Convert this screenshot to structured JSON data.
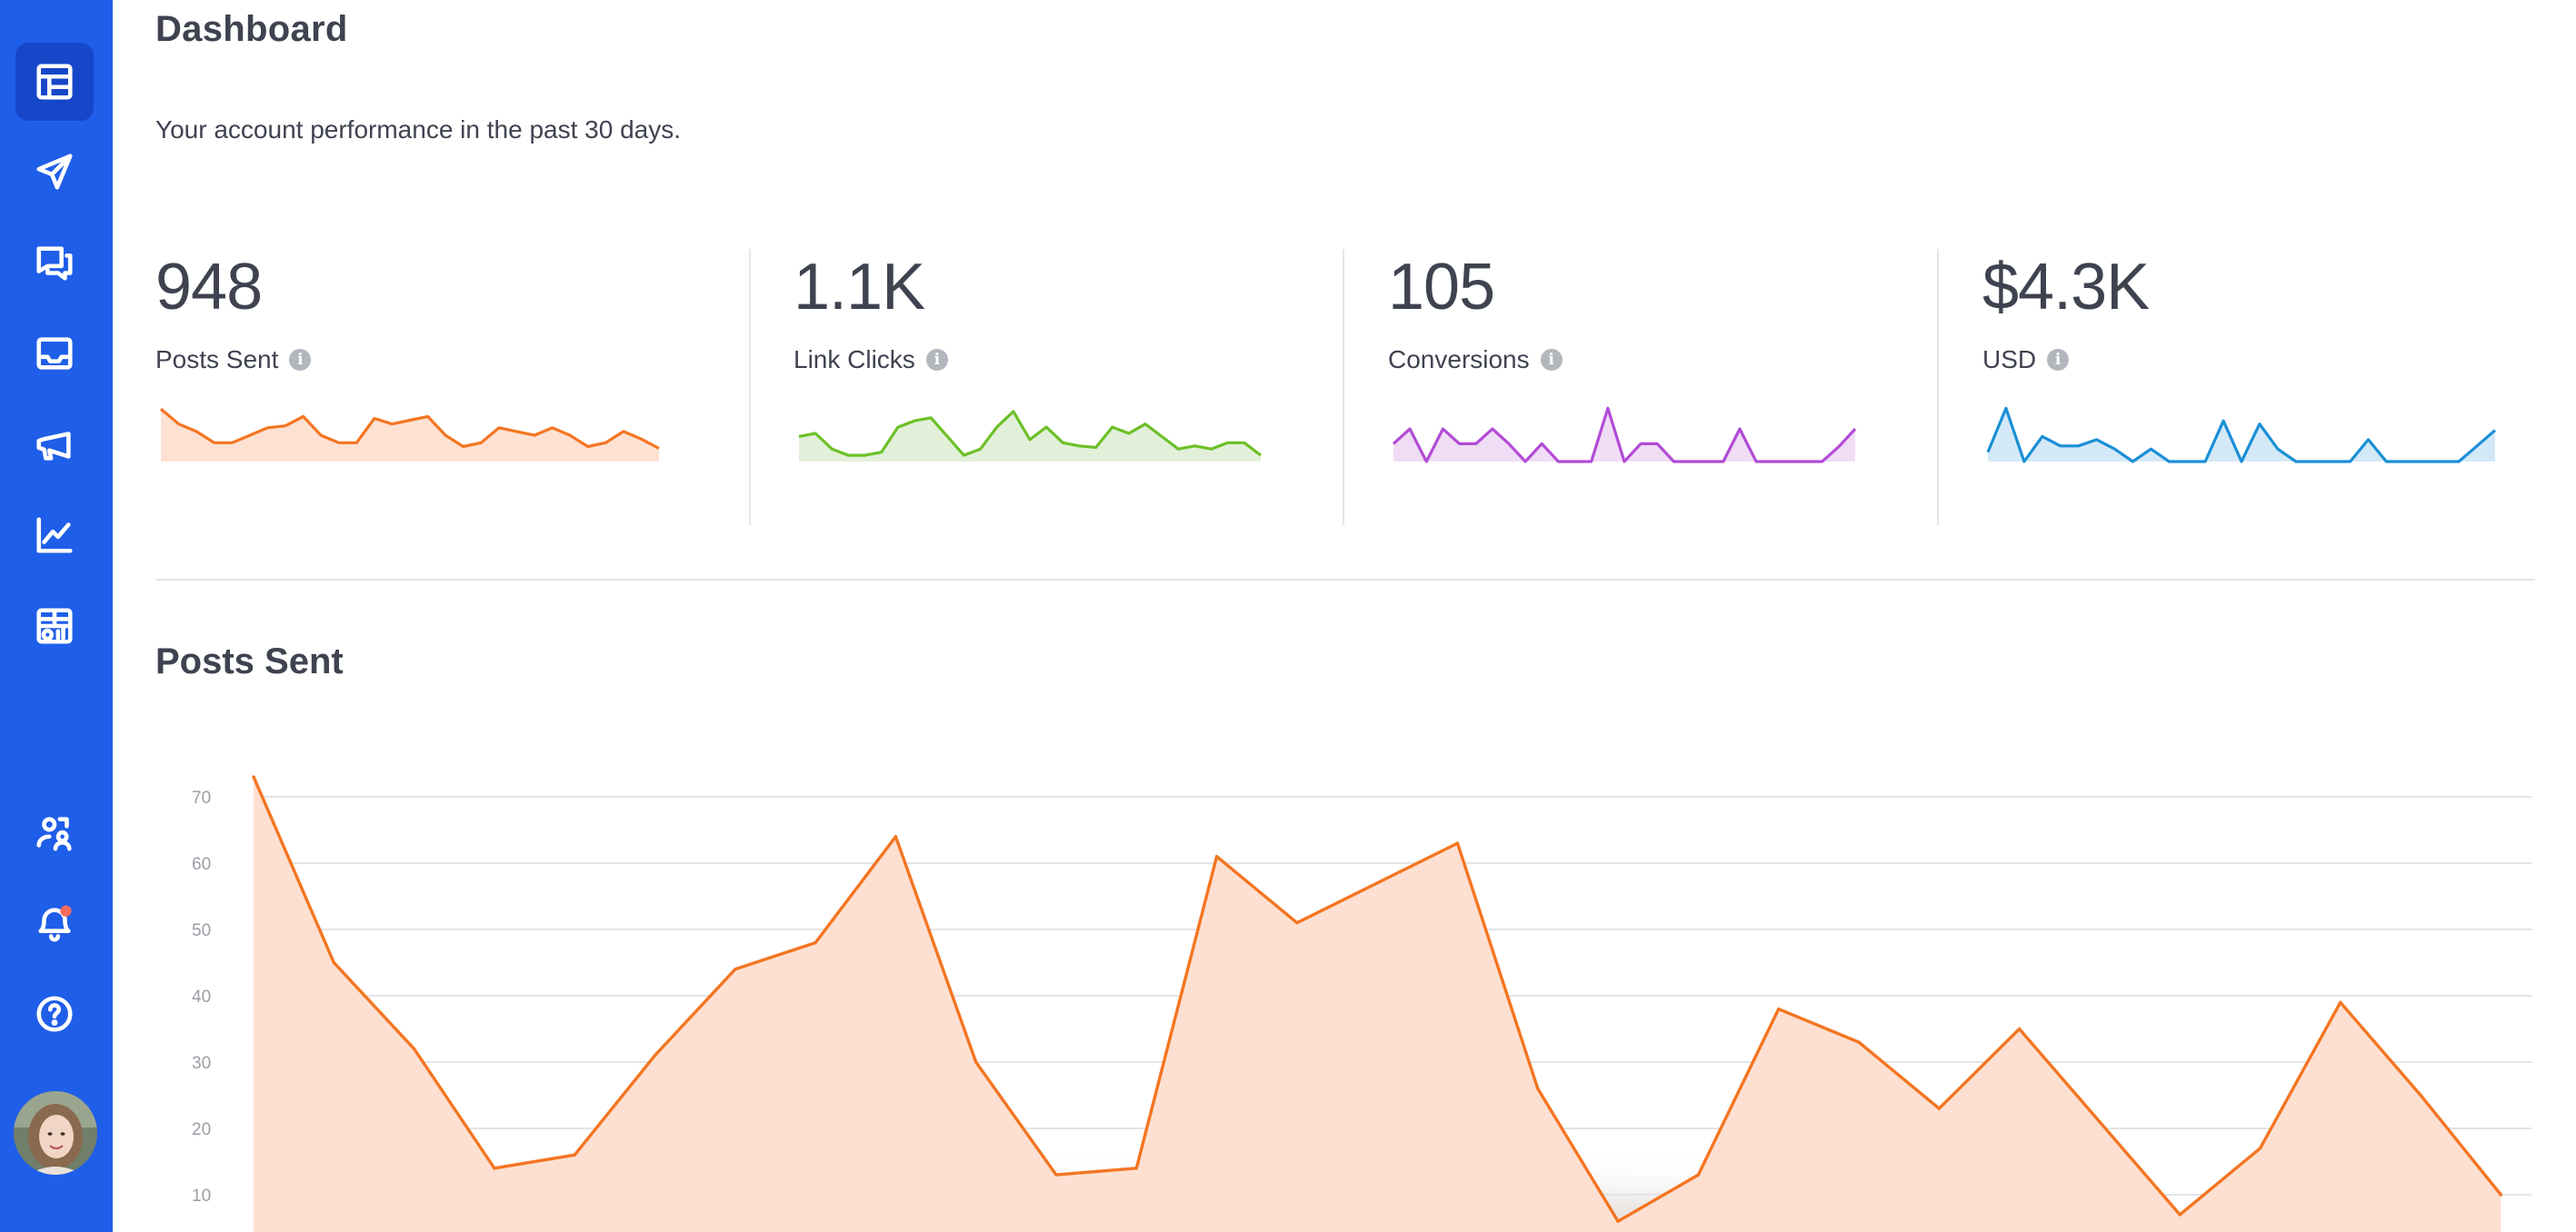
{
  "page": {
    "title": "Dashboard",
    "subtitle": "Your account performance in the past 30 days."
  },
  "sidebar": {
    "items": [
      {
        "icon": "layout-icon",
        "active": true
      },
      {
        "icon": "send-icon"
      },
      {
        "icon": "chat-icon"
      },
      {
        "icon": "inbox-icon"
      },
      {
        "icon": "megaphone-icon"
      },
      {
        "icon": "trend-chart-icon"
      },
      {
        "icon": "report-table-icon"
      },
      {
        "icon": "user-switch-icon"
      },
      {
        "icon": "bell-icon",
        "badge": true
      },
      {
        "icon": "help-icon"
      }
    ],
    "accent": "#1f5ee8",
    "badge_color": "#f26b5b"
  },
  "stats": [
    {
      "value": "948",
      "label": "Posts Sent",
      "color": "#f47521",
      "fill": "#fde1d3"
    },
    {
      "value": "1.1K",
      "label": "Link Clicks",
      "color": "#6cc027",
      "fill": "#e2f0d9"
    },
    {
      "value": "105",
      "label": "Conversions",
      "color": "#b24bd6",
      "fill": "#f0dcf5"
    },
    {
      "value": "$4.3K",
      "label": "USD",
      "color": "#1a8fd6",
      "fill": "#d4e9f7"
    }
  ],
  "info_icon_glyph": "i",
  "section": {
    "title": "Posts Sent"
  },
  "chart_data": [
    {
      "type": "area",
      "title": "Posts Sent",
      "xlabel": "",
      "ylabel": "",
      "yticks": [
        10,
        20,
        30,
        40,
        50,
        60,
        70
      ],
      "ylim": [
        5,
        75
      ],
      "grid": true,
      "color": "#f47521",
      "fill": "#fde0d2",
      "values": [
        73,
        45,
        32,
        14,
        16,
        31,
        44,
        48,
        64,
        30,
        13,
        14,
        61,
        51,
        57,
        63,
        26,
        6,
        13,
        38,
        33,
        23,
        35,
        21,
        7,
        17,
        39,
        25,
        10
      ]
    },
    {
      "type": "area",
      "title": "Posts Sent",
      "values": [
        14,
        10,
        8,
        5,
        5,
        7,
        9,
        9.5,
        12,
        7,
        5,
        5,
        11.5,
        10,
        11,
        12,
        7,
        4,
        5,
        9,
        8,
        7,
        9,
        7,
        4,
        5,
        8,
        6,
        3.5
      ],
      "ylim": [
        0,
        15
      ]
    },
    {
      "type": "area",
      "title": "Link Clicks",
      "values": [
        8,
        9,
        4,
        2,
        2,
        3,
        11,
        13,
        14,
        8,
        2,
        4,
        11,
        16,
        7,
        11,
        6,
        5,
        4.5,
        11,
        9,
        12,
        8,
        4,
        5,
        4,
        6,
        6,
        2
      ],
      "ylim": [
        0,
        18
      ]
    },
    {
      "type": "area",
      "title": "Conversions",
      "values": [
        6,
        11,
        0,
        11,
        6,
        6,
        11,
        6,
        0,
        6,
        0,
        0,
        0,
        18,
        0,
        6,
        6,
        0,
        0,
        0,
        0,
        11,
        0,
        0,
        0,
        0,
        0,
        5,
        11
      ],
      "ylim": [
        0,
        19
      ]
    },
    {
      "type": "area",
      "title": "USD",
      "values": [
        3,
        17,
        0,
        8,
        5,
        5,
        7,
        4,
        0,
        4,
        0,
        0,
        0,
        13,
        0,
        12,
        4,
        0,
        0,
        0,
        0,
        7,
        0,
        0,
        0,
        0,
        0,
        5,
        10
      ],
      "ylim": [
        0,
        18
      ]
    }
  ]
}
